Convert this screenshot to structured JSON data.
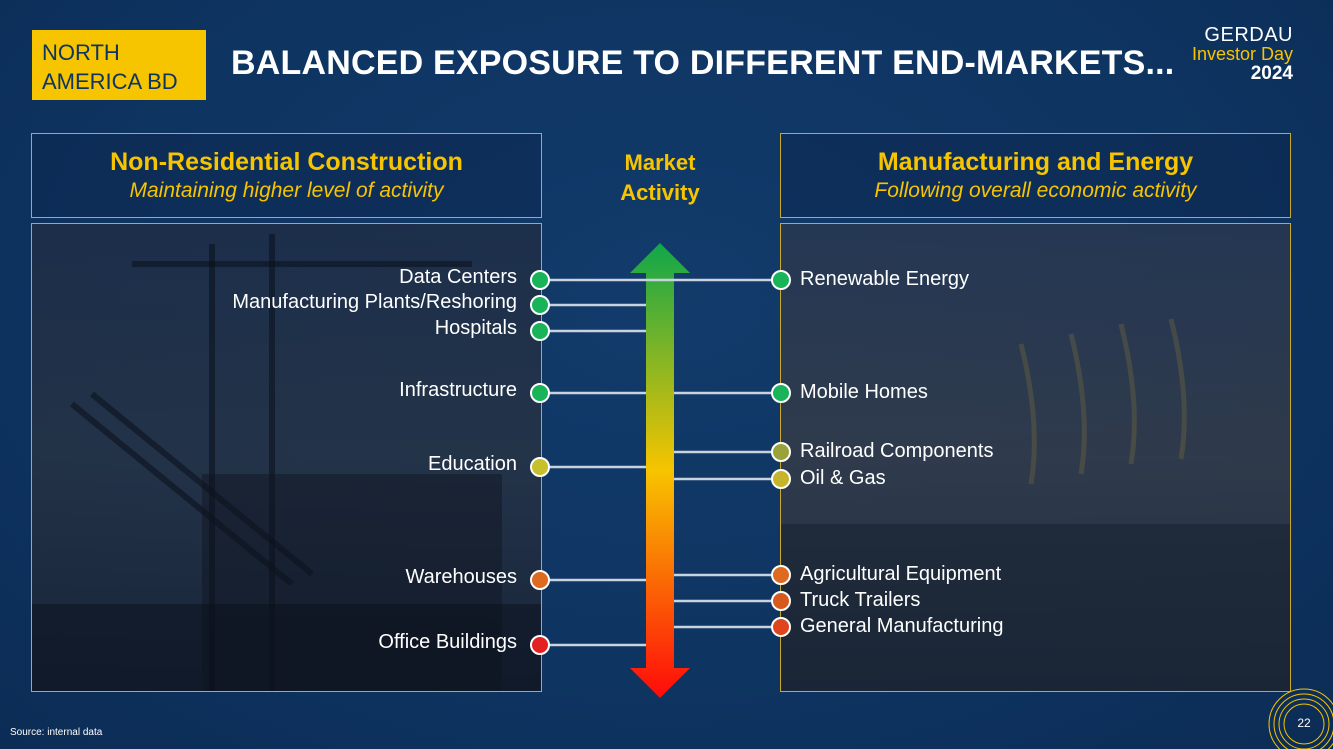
{
  "tag": {
    "line1": "NORTH",
    "line2": "AMERICA BD"
  },
  "title": "BALANCED EXPOSURE TO DIFFERENT END-MARKETS...",
  "logo": {
    "line1": "GERDAU",
    "line2": "Investor Day",
    "line3": "2024"
  },
  "left_header": {
    "title": "Non-Residential Construction",
    "subtitle": "Maintaining higher level of activity"
  },
  "right_header": {
    "title": "Manufacturing and Energy",
    "subtitle": "Following overall economic activity"
  },
  "market": {
    "line1": "Market",
    "line2": "Activity"
  },
  "left_items": [
    {
      "label": "Data Centers",
      "color": "#19b35a"
    },
    {
      "label": "Manufacturing Plants/Reshoring",
      "color": "#19b35a"
    },
    {
      "label": "Hospitals",
      "color": "#19b35a"
    },
    {
      "label": "Infrastructure",
      "color": "#19b35a"
    },
    {
      "label": "Education",
      "color": "#c6c02a"
    },
    {
      "label": "Warehouses",
      "color": "#dd6a1e"
    },
    {
      "label": "Office Buildings",
      "color": "#e42121"
    }
  ],
  "right_items": [
    {
      "label": "Renewable Energy",
      "color": "#19b35a"
    },
    {
      "label": "Mobile Homes",
      "color": "#19b35a"
    },
    {
      "label": "Railroad Components",
      "color": "#9aa23a"
    },
    {
      "label": "Oil & Gas",
      "color": "#c6b52a"
    },
    {
      "label": "Agricultural Equipment",
      "color": "#dd6a1e"
    },
    {
      "label": "Truck Trailers",
      "color": "#d65a1e"
    },
    {
      "label": "General Manufacturing",
      "color": "#e0441e"
    }
  ],
  "arrow_colors": {
    "top": "#0fa64a",
    "mid": "#f7c400",
    "bottom": "#ff0a0a"
  },
  "accent": "#f7c400",
  "source": "Source: internal data",
  "page_number": "22"
}
